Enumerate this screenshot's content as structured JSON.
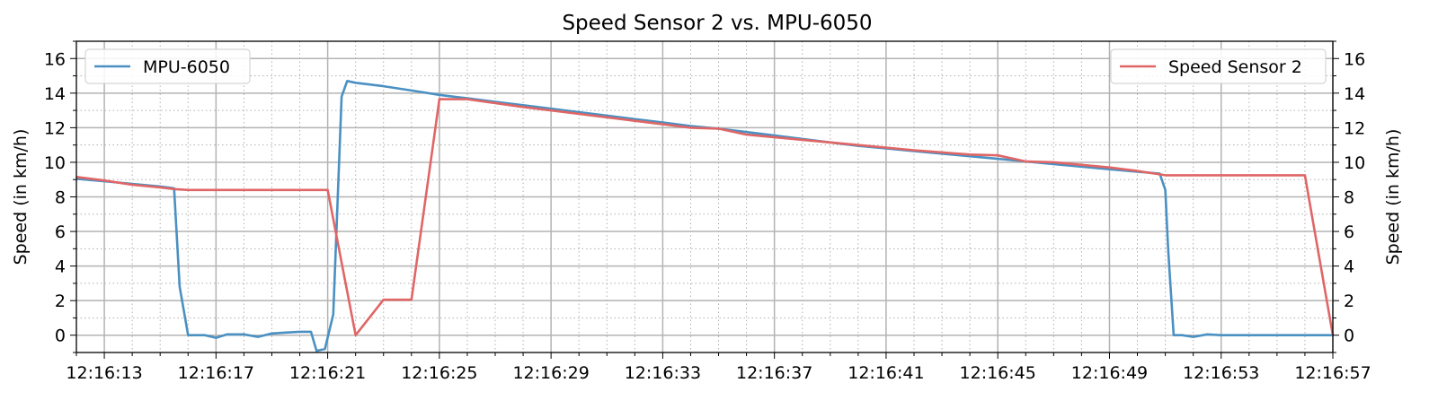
{
  "chart_data": {
    "type": "line",
    "title": "Speed Sensor 2 vs. MPU-6050",
    "ylabel_left": "Speed (in km/h)",
    "ylabel_right": "Speed (in km/h)",
    "xlim": [
      12.0,
      57.0
    ],
    "ylim": [
      -1.0,
      17.0
    ],
    "x_unit": "seconds after 12:16:00",
    "xticks": [
      13,
      17,
      21,
      25,
      29,
      33,
      37,
      41,
      45,
      49,
      53,
      57
    ],
    "xtick_labels": [
      "12:16:13",
      "12:16:17",
      "12:16:21",
      "12:16:25",
      "12:16:29",
      "12:16:33",
      "12:16:37",
      "12:16:41",
      "12:16:45",
      "12:16:49",
      "12:16:53",
      "12:16:57"
    ],
    "yticks": [
      0,
      2,
      4,
      6,
      8,
      10,
      12,
      14,
      16
    ],
    "ytick_labels": [
      "0",
      "2",
      "4",
      "6",
      "8",
      "10",
      "12",
      "14",
      "16"
    ],
    "grid": "major solid, minor dotted",
    "series": [
      {
        "name": "MPU-6050",
        "color": "#4a90c2",
        "legend_position": "top-left",
        "x": [
          12.0,
          13.0,
          14.0,
          15.0,
          15.5,
          15.7,
          16.0,
          16.6,
          17.0,
          17.4,
          18.0,
          18.5,
          19.0,
          19.5,
          20.0,
          20.2,
          20.4,
          20.6,
          20.9,
          21.2,
          21.5,
          21.7,
          22.0,
          23.0,
          24.0,
          25.0,
          26.0,
          27.0,
          28.0,
          29.0,
          30.0,
          31.0,
          32.0,
          33.0,
          34.0,
          35.0,
          36.0,
          37.0,
          38.0,
          39.0,
          40.0,
          41.0,
          42.0,
          43.0,
          44.0,
          45.0,
          46.0,
          47.0,
          48.0,
          49.0,
          50.0,
          50.8,
          51.0,
          51.1,
          51.3,
          51.6,
          52.0,
          52.5,
          53.0,
          54.0,
          55.0,
          56.0,
          57.0
        ],
        "values": [
          9.05,
          8.9,
          8.75,
          8.6,
          8.5,
          2.8,
          0.0,
          0.0,
          -0.15,
          0.05,
          0.05,
          -0.1,
          0.1,
          0.15,
          0.2,
          0.2,
          0.2,
          -0.9,
          -0.8,
          1.2,
          13.8,
          14.7,
          14.6,
          14.4,
          14.15,
          13.9,
          13.7,
          13.5,
          13.3,
          13.1,
          12.9,
          12.7,
          12.5,
          12.3,
          12.1,
          11.95,
          11.75,
          11.55,
          11.35,
          11.15,
          10.95,
          10.8,
          10.65,
          10.5,
          10.35,
          10.2,
          10.05,
          9.9,
          9.75,
          9.6,
          9.45,
          9.35,
          8.4,
          5.0,
          0.0,
          0.0,
          -0.1,
          0.05,
          0.0,
          0.0,
          0.0,
          0.0,
          0.0
        ]
      },
      {
        "name": "Speed Sensor 2",
        "color": "#e06666",
        "legend_position": "top-right",
        "x": [
          12.0,
          13.0,
          14.0,
          15.0,
          15.5,
          16.0,
          18.0,
          20.0,
          21.0,
          21.5,
          22.0,
          23.0,
          24.0,
          25.0,
          26.0,
          28.0,
          30.0,
          32.0,
          34.0,
          35.0,
          36.0,
          38.0,
          40.0,
          42.0,
          44.0,
          45.0,
          46.0,
          47.0,
          48.0,
          49.0,
          50.0,
          51.0,
          53.0,
          55.0,
          56.0,
          57.0
        ],
        "values": [
          9.15,
          8.95,
          8.7,
          8.55,
          8.45,
          8.4,
          8.4,
          8.4,
          8.4,
          4.2,
          0.0,
          2.05,
          2.05,
          13.65,
          13.65,
          13.2,
          12.8,
          12.4,
          12.0,
          11.95,
          11.6,
          11.3,
          11.0,
          10.7,
          10.45,
          10.4,
          10.05,
          10.0,
          9.85,
          9.7,
          9.5,
          9.25,
          9.25,
          9.25,
          9.25,
          0.0
        ]
      }
    ],
    "extra_points_sensor2": {
      "x": [
        57.0
      ],
      "values": [
        0.0
      ]
    }
  }
}
